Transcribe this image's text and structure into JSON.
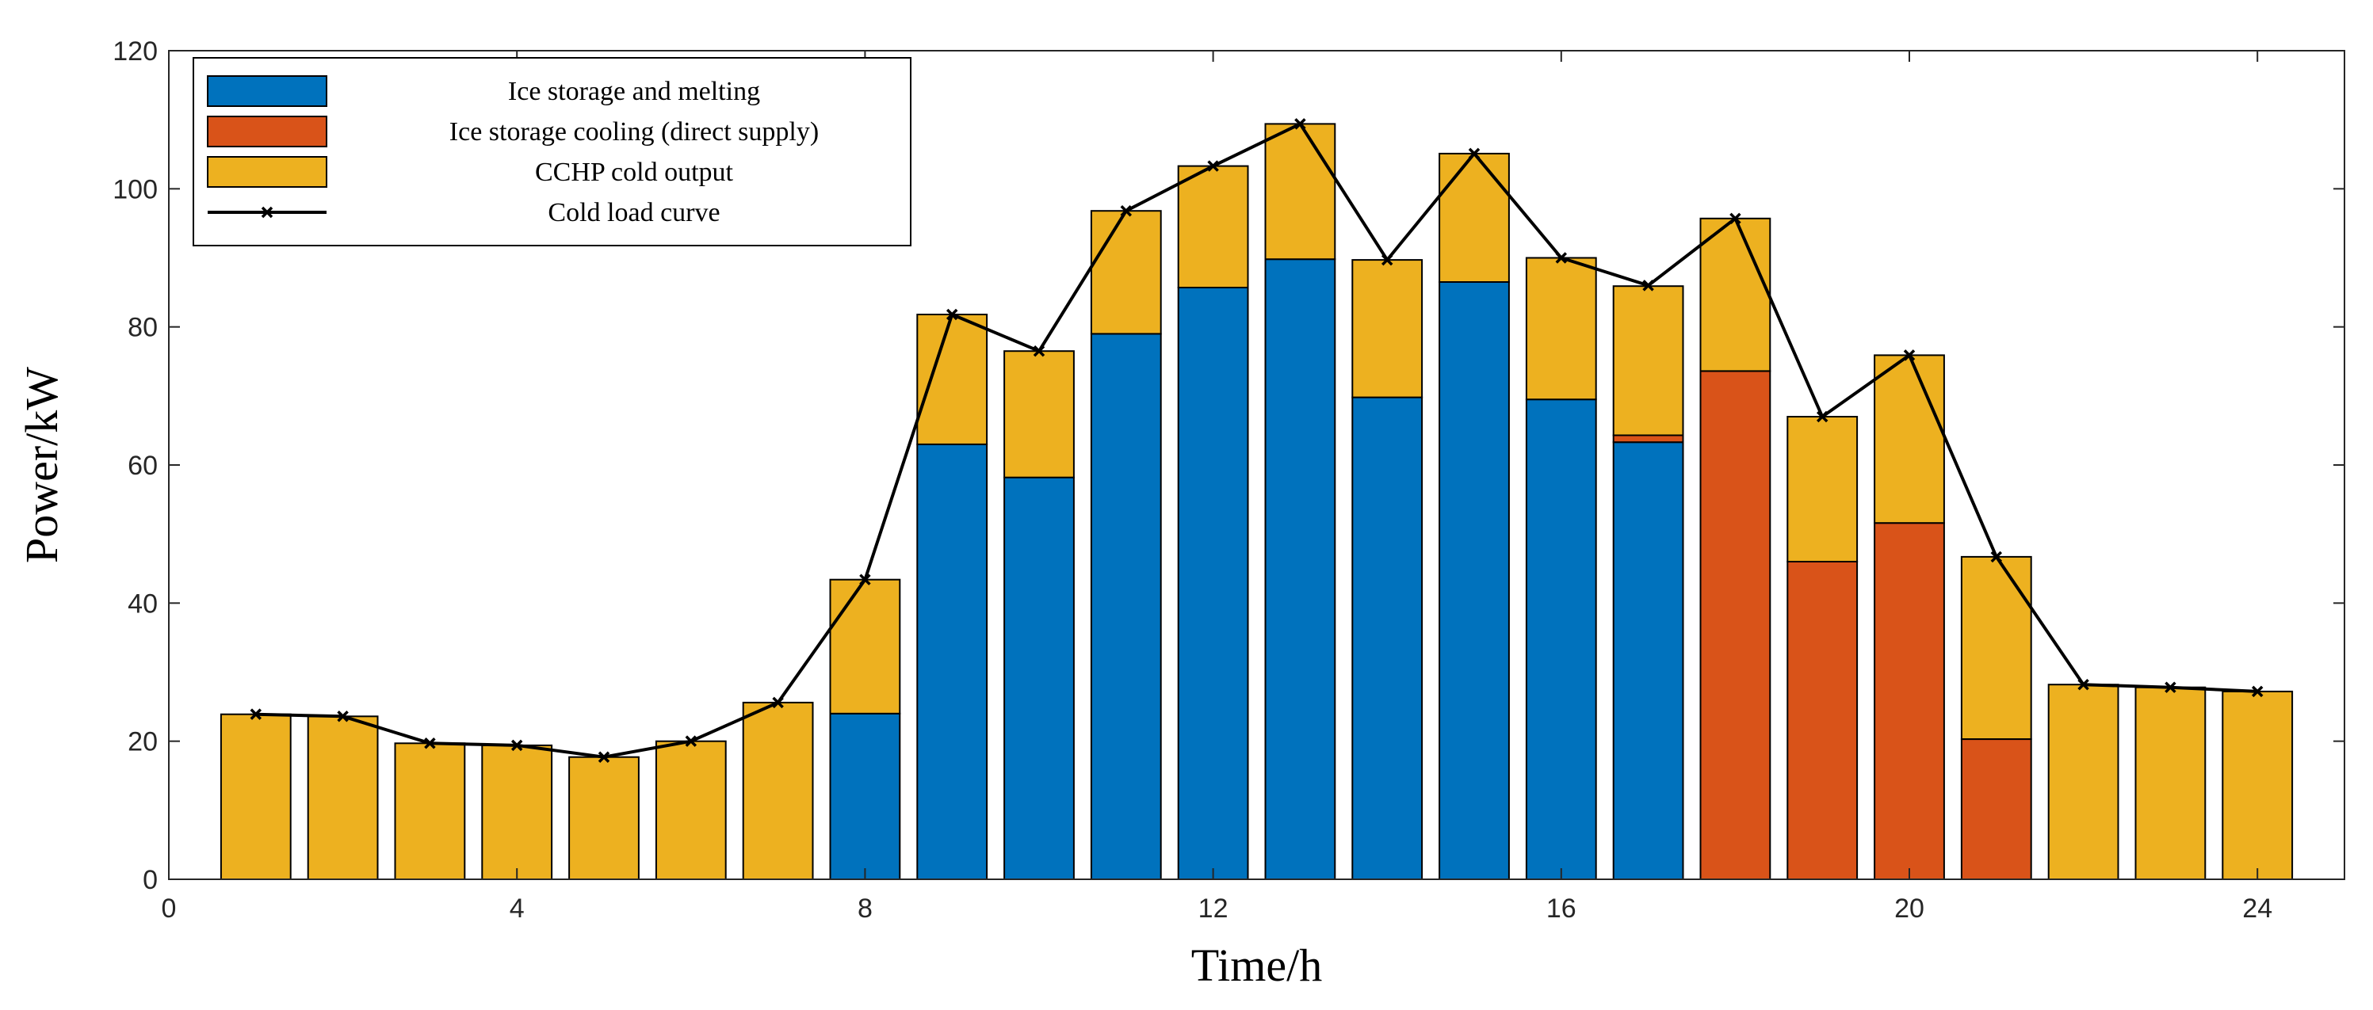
{
  "chart_data": {
    "type": "bar",
    "stacked": true,
    "xlabel": "Time/h",
    "ylabel": "Power/kW",
    "xlim": [
      0,
      25
    ],
    "ylim": [
      0,
      120
    ],
    "x_ticks": [
      0,
      4,
      8,
      12,
      16,
      20,
      24
    ],
    "y_ticks": [
      0,
      20,
      40,
      60,
      80,
      100,
      120
    ],
    "legend_position": "top-left",
    "x": [
      1,
      2,
      3,
      4,
      5,
      6,
      7,
      8,
      9,
      10,
      11,
      12,
      13,
      14,
      15,
      16,
      17,
      18,
      19,
      20,
      21,
      22,
      23,
      24
    ],
    "series": [
      {
        "name": "Ice storage and melting",
        "kind": "bar",
        "color": "#0072BD",
        "values": [
          0,
          0,
          0,
          0,
          0,
          0,
          0,
          24,
          63,
          58.2,
          79,
          85.7,
          89.8,
          69.8,
          86.5,
          69.5,
          63.3,
          0,
          0,
          0,
          0,
          0,
          0,
          0
        ]
      },
      {
        "name": "Ice storage cooling (direct supply)",
        "kind": "bar",
        "color": "#D95319",
        "values": [
          0,
          0,
          0,
          0,
          0,
          0,
          0,
          0,
          0,
          0,
          0,
          0,
          0,
          0,
          0,
          0,
          1,
          73.6,
          46,
          51.6,
          20.3,
          0,
          0,
          0
        ]
      },
      {
        "name": "CCHP cold output",
        "kind": "bar",
        "color": "#EDB120",
        "values": [
          23.9,
          23.6,
          19.7,
          19.4,
          17.7,
          20,
          25.6,
          19.4,
          18.8,
          18.3,
          17.8,
          17.6,
          19.6,
          19.9,
          18.6,
          20.5,
          21.6,
          22.1,
          21,
          24.3,
          26.4,
          28.2,
          27.8,
          27.2
        ]
      },
      {
        "name": "Cold load curve",
        "kind": "line",
        "color": "#000000",
        "values": [
          23.9,
          23.6,
          19.7,
          19.4,
          17.7,
          20,
          25.6,
          43.4,
          81.8,
          76.5,
          96.8,
          103.3,
          109.4,
          89.7,
          105.1,
          90,
          86,
          95.7,
          67,
          75.9,
          46.7,
          28.2,
          27.8,
          27.2
        ]
      }
    ]
  }
}
